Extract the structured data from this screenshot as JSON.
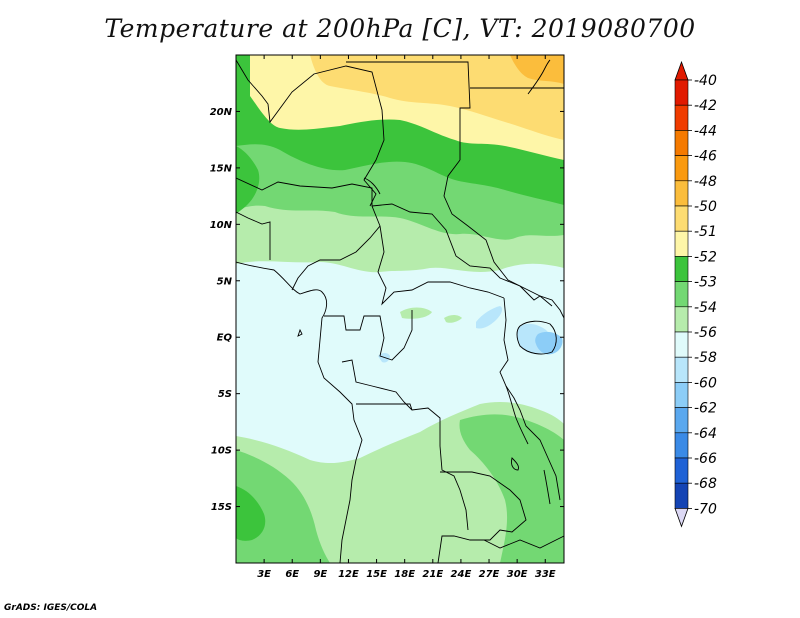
{
  "title": "Temperature at 200hPa [C], VT: 2019080700",
  "credit": "GrADS: IGES/COLA",
  "map": {
    "lon_range": [
      0,
      35
    ],
    "lat_range": [
      -20,
      25
    ],
    "lon_ticks": [
      {
        "value": 3,
        "label": "3E"
      },
      {
        "value": 6,
        "label": "6E"
      },
      {
        "value": 9,
        "label": "9E"
      },
      {
        "value": 12,
        "label": "12E"
      },
      {
        "value": 15,
        "label": "15E"
      },
      {
        "value": 18,
        "label": "18E"
      },
      {
        "value": 21,
        "label": "21E"
      },
      {
        "value": 24,
        "label": "24E"
      },
      {
        "value": 27,
        "label": "27E"
      },
      {
        "value": 30,
        "label": "30E"
      },
      {
        "value": 33,
        "label": "33E"
      }
    ],
    "lat_ticks": [
      {
        "value": 20,
        "label": "20N"
      },
      {
        "value": 15,
        "label": "15N"
      },
      {
        "value": 10,
        "label": "10N"
      },
      {
        "value": 5,
        "label": "5N"
      },
      {
        "value": 0,
        "label": "EQ"
      },
      {
        "value": -5,
        "label": "5S"
      },
      {
        "value": -10,
        "label": "10S"
      },
      {
        "value": -15,
        "label": "15S"
      }
    ]
  },
  "colorbar": {
    "levels": [
      {
        "label": "-40",
        "color": "#e11a00"
      },
      {
        "label": "-42",
        "color": "#f03c00"
      },
      {
        "label": "-44",
        "color": "#f57a00"
      },
      {
        "label": "-46",
        "color": "#fa9a10"
      },
      {
        "label": "-48",
        "color": "#fbbd3c"
      },
      {
        "label": "-50",
        "color": "#fddc72"
      },
      {
        "label": "-51",
        "color": "#fef6a8"
      },
      {
        "label": "-52",
        "color": "#3cc43c"
      },
      {
        "label": "-53",
        "color": "#73d873"
      },
      {
        "label": "-54",
        "color": "#b6ecac"
      },
      {
        "label": "-56",
        "color": "#e0fbfb"
      },
      {
        "label": "-58",
        "color": "#b8e6fb"
      },
      {
        "label": "-60",
        "color": "#8ccdf7"
      },
      {
        "label": "-62",
        "color": "#5aa8ef"
      },
      {
        "label": "-64",
        "color": "#3a8ae6"
      },
      {
        "label": "-66",
        "color": "#1f62d6"
      },
      {
        "label": "-68",
        "color": "#1444b4"
      },
      {
        "label": "-70",
        "color": "#0a1a6e"
      }
    ],
    "top_cap_color": "#e11a00",
    "bottom_cap_color": "#dcd8f4"
  }
}
